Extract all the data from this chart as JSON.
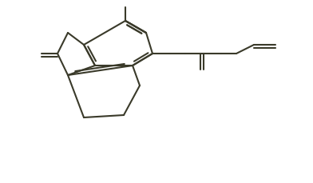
{
  "bond_color": "#3a3a2a",
  "bg_color": "#ffffff",
  "lw": 1.5,
  "figsize": [
    3.92,
    2.3
  ],
  "dpi": 100
}
